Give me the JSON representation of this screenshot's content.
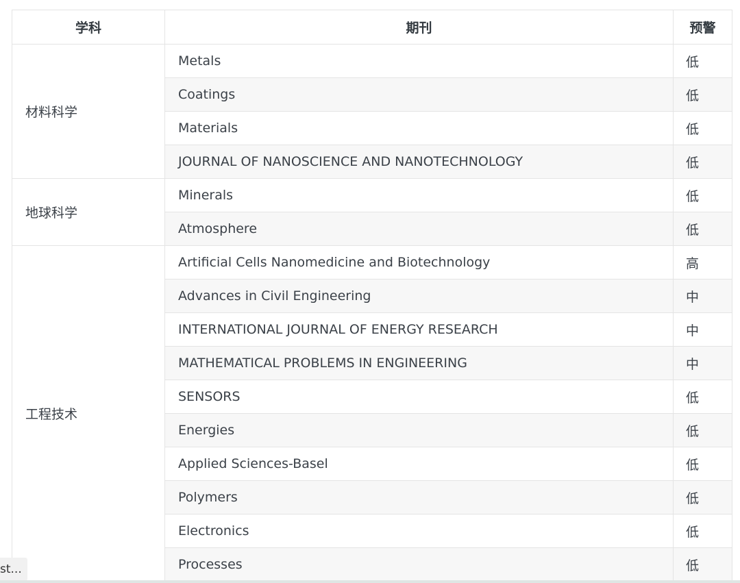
{
  "headers": {
    "subject": "学科",
    "journal": "期刊",
    "warning": "预警"
  },
  "groups": [
    {
      "subject": "材料科学",
      "rows": [
        {
          "journal": "Metals",
          "warning": "低"
        },
        {
          "journal": "Coatings",
          "warning": "低"
        },
        {
          "journal": "Materials",
          "warning": "低"
        },
        {
          "journal": "JOURNAL OF NANOSCIENCE AND NANOTECHNOLOGY",
          "warning": "低"
        }
      ]
    },
    {
      "subject": "地球科学",
      "rows": [
        {
          "journal": "Minerals",
          "warning": "低"
        },
        {
          "journal": "Atmosphere",
          "warning": "低"
        }
      ]
    },
    {
      "subject": "工程技术",
      "rows": [
        {
          "journal": "Artificial Cells Nanomedicine and Biotechnology",
          "warning": "高"
        },
        {
          "journal": "Advances in Civil Engineering",
          "warning": "中"
        },
        {
          "journal": "INTERNATIONAL JOURNAL OF ENERGY RESEARCH",
          "warning": "中"
        },
        {
          "journal": "MATHEMATICAL PROBLEMS IN ENGINEERING",
          "warning": "中"
        },
        {
          "journal": "SENSORS",
          "warning": "低"
        },
        {
          "journal": "Energies",
          "warning": "低"
        },
        {
          "journal": "Applied Sciences-Basel",
          "warning": "低"
        },
        {
          "journal": "Polymers",
          "warning": "低"
        },
        {
          "journal": "Electronics",
          "warning": "低"
        },
        {
          "journal": "Processes",
          "warning": "低"
        }
      ]
    }
  ],
  "tooltip": "st..."
}
